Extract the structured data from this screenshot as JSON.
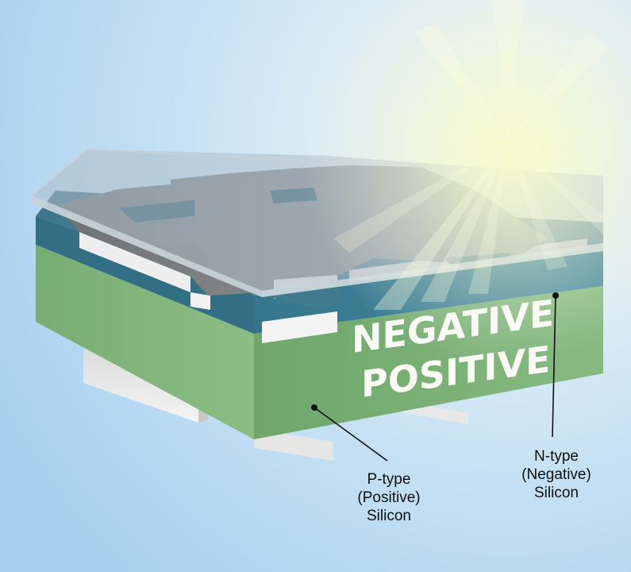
{
  "layers": {
    "n_layer_word": "NEGATIVE",
    "p_layer_word": "POSITIVE"
  },
  "callouts": {
    "p_type": {
      "line1": "P-type",
      "line2": "(Positive)",
      "line3": "Silicon"
    },
    "n_type": {
      "line1": "N-type",
      "line2": "(Negative)",
      "line3": "Silicon"
    }
  },
  "colors": {
    "background": "#bcdcf3",
    "glass_cover": "#a8b9c2",
    "metal_contact": "#7c7f82",
    "n_layer": "#3d7f95",
    "p_layer": "#7fb378",
    "back_contact": "#e9e9e9",
    "sunlight": "#f6f9c8"
  }
}
